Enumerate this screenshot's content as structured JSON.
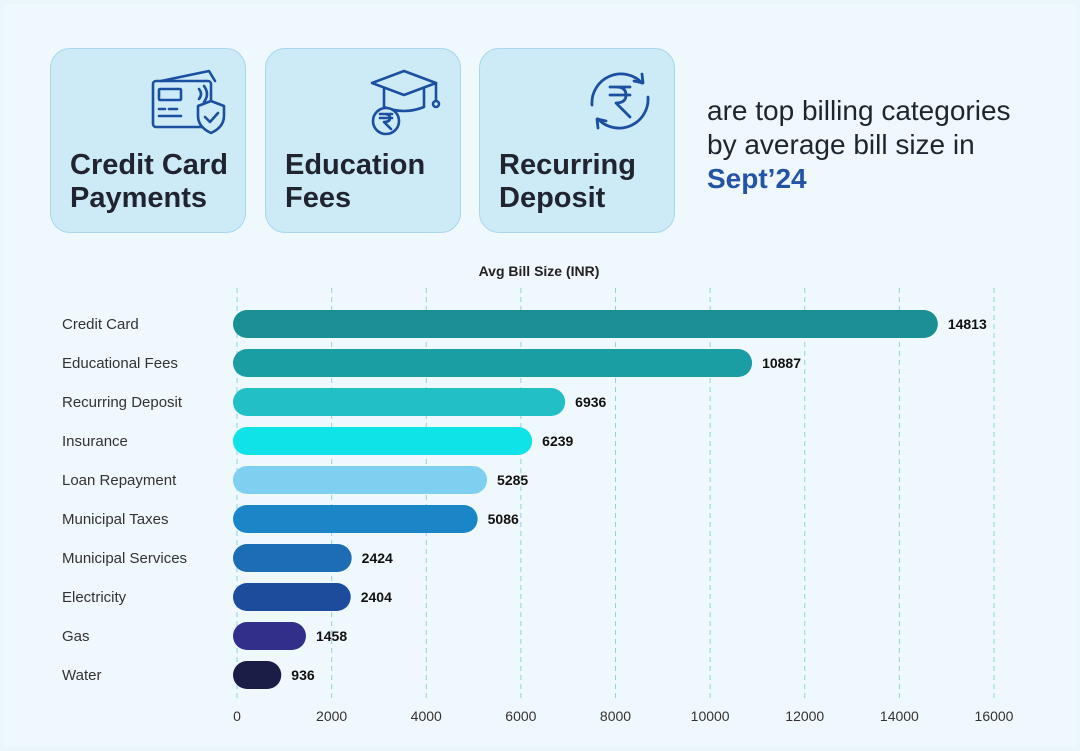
{
  "cards": [
    {
      "line1": "Credit Card",
      "line2": "Payments",
      "icon": "credit-card-shield-icon"
    },
    {
      "line1": "Education",
      "line2": "Fees",
      "icon": "graduation-cap-rupee-icon"
    },
    {
      "line1": "Recurring",
      "line2": "Deposit",
      "icon": "rupee-cycle-icon"
    }
  ],
  "headline": {
    "line1": "are top billing categories",
    "line2": "by average bill size in",
    "highlight": "Sept’24"
  },
  "colors": {
    "accent": "#2554a6",
    "card_bg": "#cdeaf7",
    "icon": "#1b4fa0"
  },
  "chart_data": {
    "type": "bar",
    "orientation": "horizontal",
    "title": "Avg Bill Size (INR)",
    "categories": [
      "Credit Card",
      "Educational Fees",
      "Recurring Deposit",
      "Insurance",
      "Loan Repayment",
      "Municipal Taxes",
      "Municipal Services",
      "Electricity",
      "Gas",
      "Water"
    ],
    "values": [
      14813,
      10887,
      6936,
      6239,
      5285,
      5086,
      2424,
      2404,
      1458,
      936
    ],
    "value_labels": [
      "14813",
      "10887",
      "6936",
      "6239",
      "5285",
      "5086",
      "2424",
      "2404",
      "1458",
      "936"
    ],
    "bar_colors": [
      "#1a8f94",
      "#1a9ea3",
      "#22bfc6",
      "#0fe3e8",
      "#7fd0f0",
      "#1a86c8",
      "#1c6db3",
      "#1e4c9c",
      "#322f8a",
      "#1a1d45"
    ],
    "xlim": [
      0,
      16000
    ],
    "xticks": [
      "0",
      "2000",
      "4000",
      "6000",
      "8000",
      "10000",
      "12000",
      "14000",
      "16000"
    ],
    "grid": "vertical dashed"
  }
}
